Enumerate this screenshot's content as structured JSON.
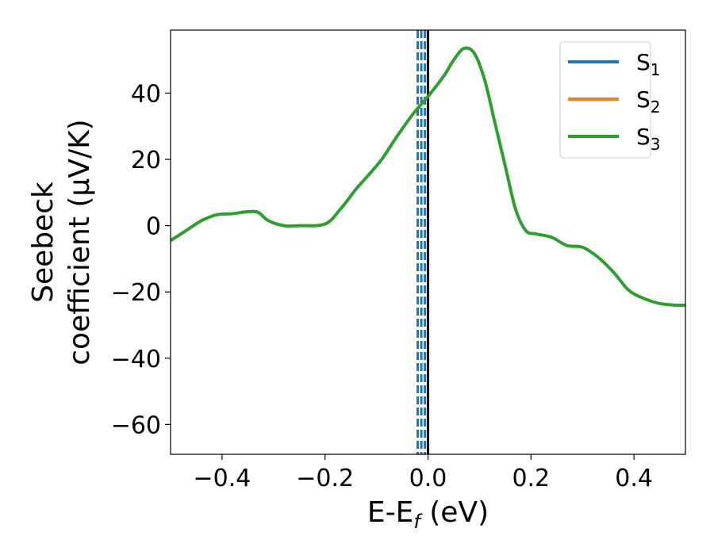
{
  "chart_data": {
    "type": "line",
    "xlabel": "E-E",
    "xlabel_sub": "f",
    "xlabel_unit": " (eV)",
    "ylabel_line1": "Seebeck",
    "ylabel_line2": "coefficient  (μV/K)",
    "xlim": [
      -0.5,
      0.5
    ],
    "ylim": [
      -69,
      59
    ],
    "xticks": [
      -0.4,
      -0.2,
      0.0,
      0.2,
      0.4
    ],
    "xtick_labels": [
      "−0.4",
      "−0.2",
      "0.0",
      "0.2",
      "0.4"
    ],
    "yticks": [
      -60,
      -40,
      -20,
      0,
      20,
      40
    ],
    "ytick_labels": [
      "−60",
      "−40",
      "−20",
      "0",
      "20",
      "40"
    ],
    "grid": false,
    "legend_position": "top-right",
    "legend": [
      {
        "label": "S",
        "sub": "1",
        "color": "#1f77b4"
      },
      {
        "label": "S",
        "sub": "2",
        "color": "#ff7f0e"
      },
      {
        "label": "S",
        "sub": "3",
        "color": "#2ca02c"
      }
    ],
    "series": [
      {
        "name": "S3",
        "color": "#2ca02c",
        "x": [
          -0.5,
          -0.47,
          -0.44,
          -0.41,
          -0.38,
          -0.35,
          -0.33,
          -0.31,
          -0.28,
          -0.25,
          -0.2,
          -0.17,
          -0.14,
          -0.12,
          -0.09,
          -0.06,
          -0.03,
          0.0,
          0.03,
          0.05,
          0.07,
          0.09,
          0.11,
          0.13,
          0.15,
          0.17,
          0.19,
          0.21,
          0.24,
          0.27,
          0.3,
          0.33,
          0.36,
          0.39,
          0.42,
          0.45,
          0.48,
          0.5
        ],
        "values": [
          -4.5,
          -1.5,
          1.5,
          3.3,
          3.6,
          4.2,
          4.0,
          1.5,
          0.0,
          0.0,
          0.5,
          5.0,
          11.0,
          14.5,
          20.0,
          27.0,
          33.5,
          39.0,
          45.0,
          50.0,
          53.5,
          52.0,
          44.0,
          31.0,
          18.0,
          5.0,
          -1.5,
          -2.5,
          -3.5,
          -6.0,
          -6.5,
          -9.5,
          -14.0,
          -19.5,
          -22.0,
          -23.5,
          -24.0,
          -24.0
        ]
      }
    ],
    "vlines": [
      {
        "x": 0.0,
        "style": "solid",
        "color": "#000000"
      },
      {
        "x": -0.02,
        "style": "dashed",
        "color": "#1f77b4"
      },
      {
        "x": -0.013,
        "style": "dashed",
        "color": "#1f77b4"
      },
      {
        "x": -0.006,
        "style": "dashed",
        "color": "#1f77b4"
      }
    ]
  }
}
